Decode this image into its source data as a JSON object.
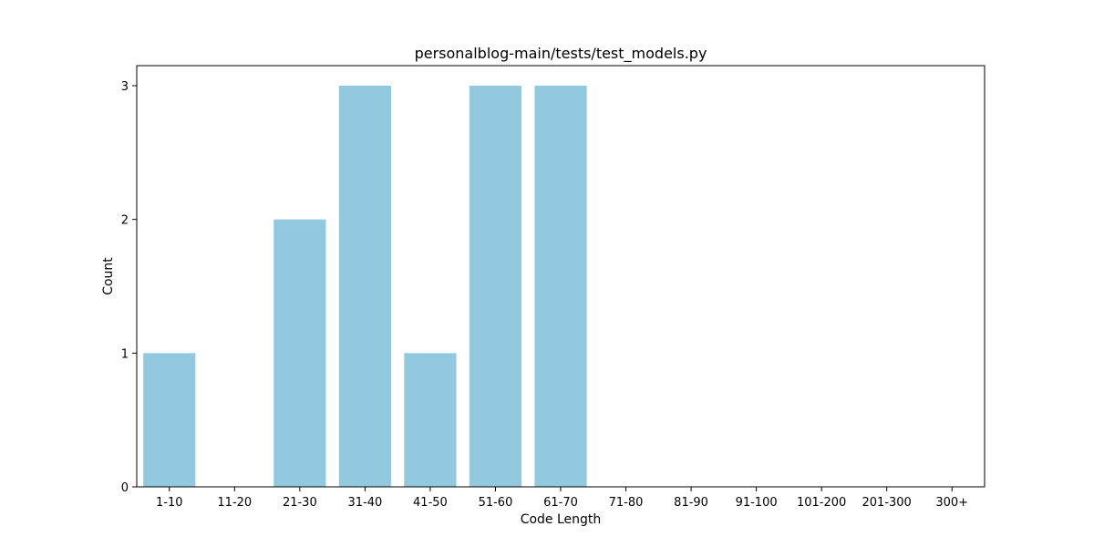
{
  "chart_data": {
    "type": "bar",
    "title": "personalblog-main/tests/test_models.py",
    "xlabel": "Code Length",
    "ylabel": "Count",
    "categories": [
      "1-10",
      "11-20",
      "21-30",
      "31-40",
      "41-50",
      "51-60",
      "61-70",
      "71-80",
      "81-90",
      "91-100",
      "101-200",
      "201-300",
      "300+"
    ],
    "values": [
      1,
      0,
      2,
      3,
      1,
      3,
      3,
      0,
      0,
      0,
      0,
      0,
      0
    ],
    "ylim": [
      0,
      3.15
    ],
    "yticks": [
      0,
      1,
      2,
      3
    ],
    "bar_color": "#92c9df",
    "grid": false
  }
}
